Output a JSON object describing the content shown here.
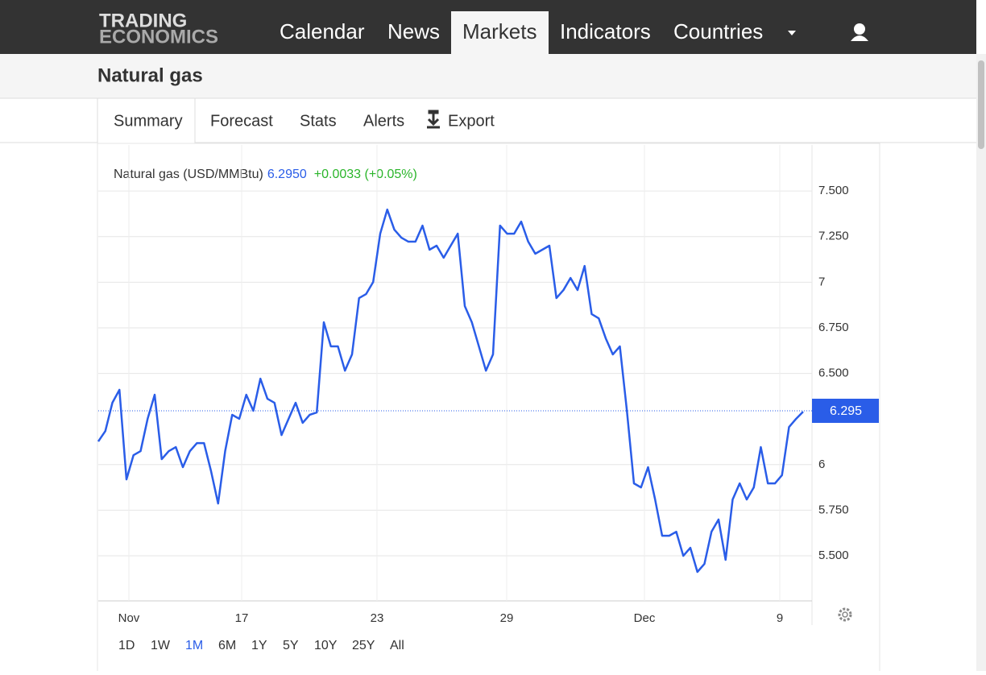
{
  "nav": {
    "logo": [
      "TRADING",
      "ECONOMICS"
    ],
    "items": [
      "Calendar",
      "News",
      "Markets",
      "Indicators",
      "Countries"
    ],
    "active": 2
  },
  "page_title": "Natural gas",
  "tabs": [
    "Summary",
    "Forecast",
    "Stats",
    "Alerts",
    "Export"
  ],
  "quote": {
    "price": "6.2950",
    "change": "+0.0033 (+0.05%)"
  },
  "ranges": [
    "1D",
    "1W",
    "1M",
    "6M",
    "1Y",
    "5Y",
    "10Y",
    "25Y",
    "All"
  ],
  "active_range": 2,
  "chart_data": {
    "type": "line",
    "series": [
      {
        "name": "Natural gas (USD/MMBtu)",
        "color": "#2a5de8",
        "values": [
          6.127,
          6.184,
          6.339,
          6.41,
          5.919,
          6.052,
          6.074,
          6.251,
          6.383,
          6.03,
          6.074,
          6.096,
          5.986,
          6.074,
          6.118,
          6.118,
          5.964,
          5.787,
          6.074,
          6.273,
          6.251,
          6.383,
          6.295,
          6.471,
          6.361,
          6.339,
          6.162,
          6.251,
          6.339,
          6.229,
          6.273,
          6.286,
          6.78,
          6.648,
          6.648,
          6.515,
          6.604,
          6.913,
          6.935,
          7.001,
          7.266,
          7.398,
          7.288,
          7.244,
          7.222,
          7.222,
          7.31,
          7.178,
          7.2,
          7.134,
          7.2,
          7.266,
          6.869,
          6.78,
          6.648,
          6.515,
          6.604,
          7.31,
          7.266,
          7.266,
          7.332,
          7.222,
          7.156,
          7.178,
          7.2,
          6.913,
          6.957,
          7.023,
          6.957,
          7.089,
          6.825,
          6.802,
          6.692,
          6.604,
          6.648,
          6.295,
          5.897,
          5.875,
          5.986,
          5.809,
          5.61,
          5.61,
          5.632,
          5.5,
          5.544,
          5.412,
          5.456,
          5.632,
          5.699,
          5.478,
          5.809,
          5.897,
          5.809,
          5.875,
          6.096,
          5.897,
          5.897,
          5.942,
          6.206,
          6.251,
          6.29
        ]
      }
    ],
    "last": {
      "value": 6.295,
      "label": "6.295"
    },
    "xlim": [
      0,
      101.26
    ],
    "xticks": [
      {
        "value": 4.34,
        "label": "Nov"
      },
      {
        "value": 20.34,
        "label": "17"
      },
      {
        "value": 39.54,
        "label": "23"
      },
      {
        "value": 57.94,
        "label": "29"
      },
      {
        "value": 77.49,
        "label": "Dec"
      },
      {
        "value": 96.69,
        "label": "9"
      }
    ],
    "ylim": [
      5.253,
      7.752
    ],
    "yticks": [
      {
        "value": 7.5,
        "label": "7.500"
      },
      {
        "value": 7.25,
        "label": "7.250"
      },
      7,
      {
        "value": 6.75,
        "label": "6.750"
      },
      {
        "value": 6.5,
        "label": "6.500"
      },
      6,
      {
        "value": 5.75,
        "label": "5.750"
      },
      {
        "value": 5.5,
        "label": "5.500"
      }
    ],
    "grid": true
  }
}
